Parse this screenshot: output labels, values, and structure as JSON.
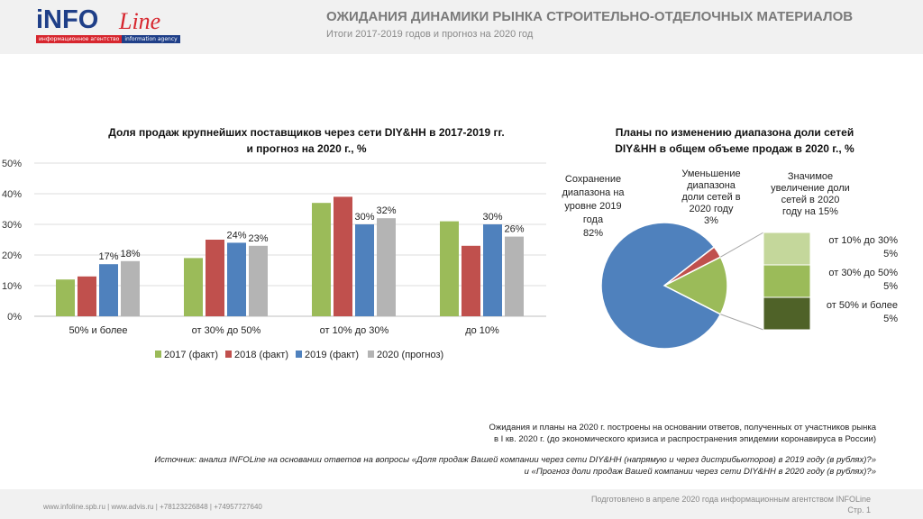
{
  "header": {
    "logo": {
      "text": "iNFO",
      "italic": "Line",
      "tagline_left": "информационное агентство",
      "tagline_right": "information agency"
    },
    "title": "ОЖИДАНИЯ ДИНАМИКИ РЫНКА СТРОИТЕЛЬНО-ОТДЕЛОЧНЫХ МАТЕРИАЛОВ",
    "subtitle": "Итоги 2017-2019 годов и прогноз на 2020 год"
  },
  "colors": {
    "s2017": "#9bbb59",
    "s2018": "#c0504d",
    "s2019": "#4f81bd",
    "s2020": "#b4b4b4",
    "pie_main": "#4f81bd",
    "pie_red": "#c0504d",
    "pie_green": "#9bbb59",
    "stack_light": "#c4d79b",
    "stack_mid": "#9bbb59",
    "stack_dark": "#4f6228"
  },
  "chart_data": [
    {
      "type": "bar",
      "title_line1": "Доля продаж крупнейших поставщиков через сети DIY&HH в 2017-2019 гг.",
      "title_line2": "и прогноз на 2020 г., %",
      "categories": [
        "50% и более",
        "от 30% до 50%",
        "от 10% до 30%",
        "до 10%"
      ],
      "y_ticks": [
        "0%",
        "10%",
        "20%",
        "30%",
        "40%",
        "50%"
      ],
      "ylim": [
        0,
        50
      ],
      "series": [
        {
          "name": "2017 (факт)",
          "values": [
            12,
            19,
            37,
            31
          ]
        },
        {
          "name": "2018 (факт)",
          "values": [
            13,
            25,
            39,
            23
          ]
        },
        {
          "name": "2019 (факт)",
          "values": [
            17,
            24,
            30,
            30
          ],
          "labels": [
            "17%",
            "24%",
            "30%",
            "30%"
          ]
        },
        {
          "name": "2020 (прогноз)",
          "values": [
            18,
            23,
            32,
            26
          ],
          "labels": [
            "18%",
            "23%",
            "32%",
            "26%"
          ]
        }
      ],
      "legend_position": "bottom"
    },
    {
      "type": "pie",
      "title_line1": "Планы по изменению диапазона доли сетей",
      "title_line2": "DIY&HH в общем объеме продаж в 2020 г., %",
      "slices": [
        {
          "label": "Сохранение диапазона на уровне 2019 года",
          "value": 82,
          "text": [
            "Сохранение",
            "диапазона на",
            "уровне 2019",
            "года",
            "82%"
          ]
        },
        {
          "label": "Уменьшение диапазона доли сетей в 2020 году",
          "value": 3,
          "text": [
            "Уменьшение",
            "диапазона",
            "доли сетей в",
            "2020 году",
            "3%"
          ]
        },
        {
          "label": "Значимое увеличение доли сетей в 2020 году",
          "value": 15,
          "text": [
            "Значимое",
            "увеличение доли",
            "сетей в 2020",
            "году на  15%"
          ]
        }
      ],
      "breakdown": [
        {
          "label": "от 10% до 30%",
          "value": 5,
          "text": [
            "от 10% до 30%",
            "5%"
          ]
        },
        {
          "label": "от 30% до 50%",
          "value": 5,
          "text": [
            "от 30% до 50%",
            "5%"
          ]
        },
        {
          "label": "от 50% и более",
          "value": 5,
          "text": [
            "от 50% и более",
            "5%"
          ]
        }
      ]
    }
  ],
  "notes": {
    "line1": "Ожидания и планы на 2020 г. построены на основании ответов, полученных от участников рынка",
    "line2": "в I кв. 2020 г. (до экономического кризиса и распространения эпидемии коронавируса в России)",
    "source1": "Источник: анализ INFOLine на основании ответов на вопросы «Доля продаж Вашей компании через сети DIY&HH (напрямую и через дистрибьюторов) в 2019 году (в рублях)?»",
    "source2": "и «Прогноз доли продаж Вашей компании через сети DIY&HH в 2020 году (в рублях)?»"
  },
  "footer": {
    "contacts": "www.infoline.spb.ru | www.advis.ru | +78123226848 | +74957727640",
    "prepared": "Подготовлено в апреле 2020 года информационным агентством INFOLine",
    "page": "Стр.  1"
  }
}
